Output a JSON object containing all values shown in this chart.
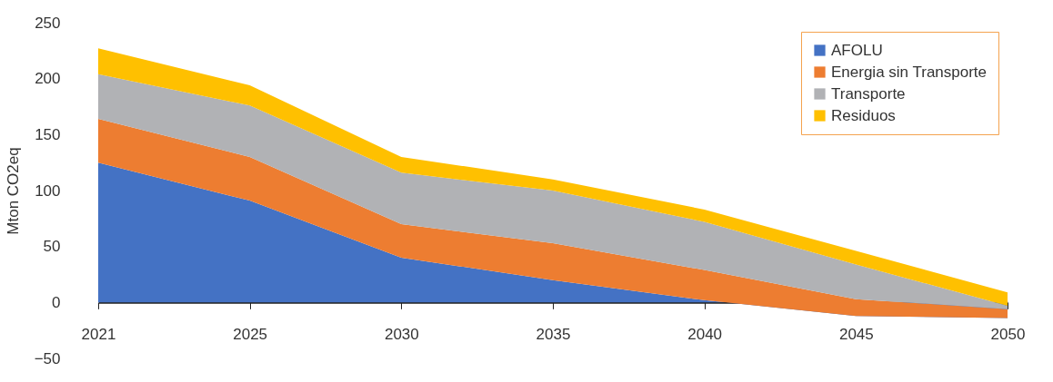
{
  "chart_data": {
    "type": "area",
    "stacked": true,
    "ylabel": "Mton CO2eq",
    "categories": [
      "2021",
      "2025",
      "2030",
      "2035",
      "2040",
      "2045",
      "2050"
    ],
    "series": [
      {
        "name": "AFOLU",
        "color": "#4472c4",
        "values": [
          125,
          91,
          40,
          20,
          2,
          -12,
          -14
        ]
      },
      {
        "name": "Energia sin Transporte",
        "color": "#ed7d31",
        "values": [
          39,
          39,
          30,
          33,
          27,
          15,
          8
        ]
      },
      {
        "name": "Transporte",
        "color": "#b1b2b5",
        "values": [
          40,
          46,
          46,
          47,
          43,
          31,
          3
        ]
      },
      {
        "name": "Residuos",
        "color": "#ffc000",
        "values": [
          23,
          18,
          14,
          10,
          11,
          12,
          12
        ]
      }
    ],
    "ylim": [
      -50,
      250
    ],
    "yticks": [
      -50,
      0,
      50,
      100,
      150,
      200,
      250
    ],
    "grid": false,
    "legend": "top right"
  }
}
